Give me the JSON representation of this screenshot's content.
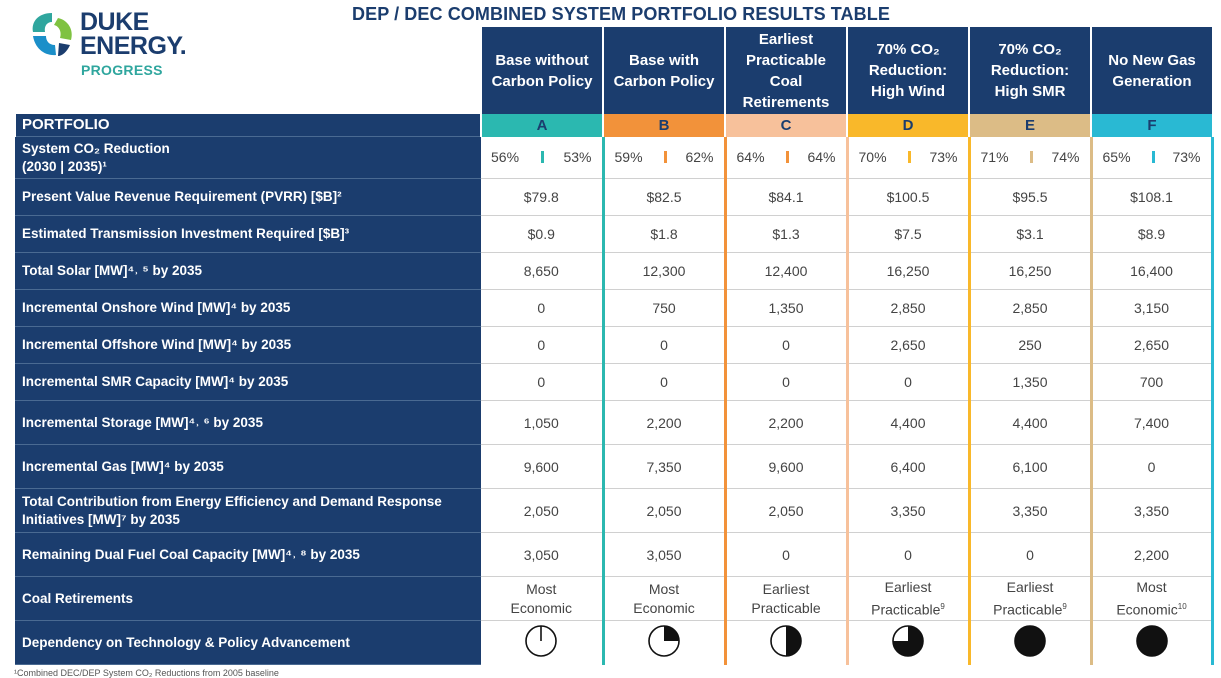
{
  "logo": {
    "line1": "DUKE",
    "line2": "ENERGY.",
    "line3": "PROGRESS"
  },
  "title": "DEP / DEC COMBINED SYSTEM PORTFOLIO RESULTS TABLE",
  "portfolio_label": "PORTFOLIO",
  "colors": {
    "navy": "#1b3d6e",
    "A": "#2bb8b0",
    "B": "#f2923a",
    "C": "#f7c19b",
    "D": "#f9b82a",
    "E": "#dcbc86",
    "F": "#29b9d3"
  },
  "columns": [
    {
      "letter": "A",
      "h1": "Base without",
      "h2": "Carbon Policy",
      "h3": "",
      "h4": ""
    },
    {
      "letter": "B",
      "h1": "Base with",
      "h2": "Carbon Policy",
      "h3": "",
      "h4": ""
    },
    {
      "letter": "C",
      "h1": "Earliest",
      "h2": "Practicable",
      "h3": "Coal",
      "h4": "Retirements"
    },
    {
      "letter": "D",
      "h1": "70% CO₂",
      "h2": "Reduction:",
      "h3": "High Wind",
      "h4": ""
    },
    {
      "letter": "E",
      "h1": "70% CO₂",
      "h2": "Reduction:",
      "h3": "High SMR",
      "h4": ""
    },
    {
      "letter": "F",
      "h1": "No New Gas",
      "h2": "Generation",
      "h3": "",
      "h4": ""
    }
  ],
  "co2": {
    "label1": "System CO₂ Reduction",
    "label2": "(2030 | 2035)¹",
    "values": [
      [
        "56%",
        "53%"
      ],
      [
        "59%",
        "62%"
      ],
      [
        "64%",
        "64%"
      ],
      [
        "70%",
        "73%"
      ],
      [
        "71%",
        "74%"
      ],
      [
        "65%",
        "73%"
      ]
    ]
  },
  "rows": [
    {
      "label": "Present Value Revenue Requirement (PVRR) [$B]²",
      "values": [
        "$79.8",
        "$82.5",
        "$84.1",
        "$100.5",
        "$95.5",
        "$108.1"
      ]
    },
    {
      "label": "Estimated Transmission Investment Required [$B]³",
      "values": [
        "$0.9",
        "$1.8",
        "$1.3",
        "$7.5",
        "$3.1",
        "$8.9"
      ]
    },
    {
      "label": "Total Solar [MW]⁴˒ ⁵ by 2035",
      "values": [
        "8,650",
        "12,300",
        "12,400",
        "16,250",
        "16,250",
        "16,400"
      ]
    },
    {
      "label": "Incremental Onshore Wind [MW]⁴ by 2035",
      "values": [
        "0",
        "750",
        "1,350",
        "2,850",
        "2,850",
        "3,150"
      ]
    },
    {
      "label": "Incremental Offshore Wind [MW]⁴ by 2035",
      "values": [
        "0",
        "0",
        "0",
        "2,650",
        "250",
        "2,650"
      ]
    },
    {
      "label": "Incremental SMR Capacity [MW]⁴ by 2035",
      "values": [
        "0",
        "0",
        "0",
        "0",
        "1,350",
        "700"
      ]
    },
    {
      "label": "Incremental Storage [MW]⁴˒ ⁶ by 2035",
      "values": [
        "1,050",
        "2,200",
        "2,200",
        "4,400",
        "4,400",
        "7,400"
      ]
    },
    {
      "label": "Incremental Gas [MW]⁴ by 2035",
      "values": [
        "9,600",
        "7,350",
        "9,600",
        "6,400",
        "6,100",
        "0"
      ]
    },
    {
      "label": "Total Contribution from Energy Efficiency and Demand Response Initiatives [MW]⁷ by 2035",
      "values": [
        "2,050",
        "2,050",
        "2,050",
        "3,350",
        "3,350",
        "3,350"
      ]
    },
    {
      "label": "Remaining Dual Fuel Coal Capacity [MW]⁴˒ ⁸ by 2035",
      "values": [
        "3,050",
        "3,050",
        "0",
        "0",
        "0",
        "2,200"
      ]
    }
  ],
  "retirements": {
    "label": "Coal Retirements",
    "values": [
      {
        "l1": "Most",
        "l2": "Economic",
        "sup": ""
      },
      {
        "l1": "Most",
        "l2": "Economic",
        "sup": ""
      },
      {
        "l1": "Earliest",
        "l2": "Practicable",
        "sup": ""
      },
      {
        "l1": "Earliest",
        "l2": "Practicable",
        "sup": "9"
      },
      {
        "l1": "Earliest",
        "l2": "Practicable",
        "sup": "9"
      },
      {
        "l1": "Most",
        "l2": "Economic",
        "sup": "10"
      }
    ]
  },
  "dependency": {
    "label": "Dependency on Technology & Policy Advancement",
    "levels": [
      0,
      0.25,
      0.5,
      0.75,
      1,
      1
    ]
  },
  "footnote": "¹Combined DEC/DEP System CO₂ Reductions from 2005 baseline"
}
